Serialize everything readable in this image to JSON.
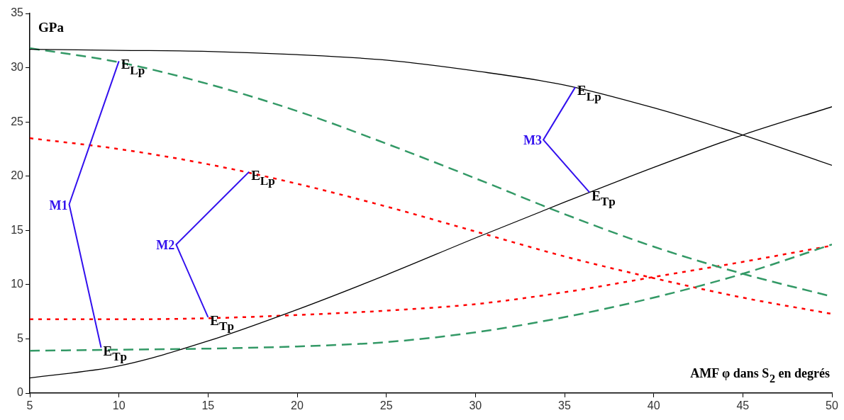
{
  "chart_data": {
    "type": "line",
    "ylabel": "GPa",
    "xlabel": "AMF φ dans S$_{2}$ en degrés",
    "x": [
      5,
      10,
      15,
      20,
      25,
      30,
      35,
      40,
      45,
      50
    ],
    "series": [
      {
        "color": "#000000",
        "line_style": "solid",
        "values": [
          31.7,
          31.6,
          31.5,
          31.2,
          30.7,
          29.7,
          28.4,
          26.3,
          23.8,
          21.0
        ]
      },
      {
        "color": "#000000",
        "line_style": "solid",
        "values": [
          1.4,
          2.5,
          4.8,
          7.7,
          10.9,
          14.3,
          17.6,
          20.8,
          23.8,
          26.4
        ]
      },
      {
        "color": "#339966",
        "line_style": "dashed",
        "values": [
          31.8,
          30.5,
          28.5,
          26.0,
          23.0,
          19.8,
          16.5,
          13.5,
          11.0,
          8.9
        ]
      },
      {
        "color": "#339966",
        "line_style": "dashed",
        "values": [
          3.9,
          4.0,
          4.1,
          4.3,
          4.7,
          5.6,
          7.0,
          8.8,
          11.0,
          13.7
        ]
      },
      {
        "color": "#ff0000",
        "line_style": "dotted",
        "values": [
          23.5,
          22.5,
          21.1,
          19.3,
          17.2,
          14.9,
          12.6,
          10.6,
          8.8,
          7.3
        ]
      },
      {
        "color": "#ff0000",
        "line_style": "dotted",
        "values": [
          6.8,
          6.8,
          6.9,
          7.2,
          7.6,
          8.2,
          9.3,
          10.7,
          12.1,
          13.6
        ]
      }
    ],
    "annotations": [
      "M1",
      {
        "text": "E$_{Lp}$",
        "x": 10,
        "y": 30.6
      },
      {
        "text": "E$_{Tp}$",
        "x": 9,
        "y": 4.2
      },
      "M2",
      {
        "text": "E$_{Lp}$",
        "x": 17.3,
        "y": 20.4
      },
      {
        "text": "E$_{Tp}$",
        "x": 15,
        "y": 7
      },
      "M3",
      {
        "text": "E$_{Lp}$",
        "x": 35.6,
        "y": 28.2
      },
      {
        "text": "E$_{Tp}$",
        "x": 36.4,
        "y": 18.5
      }
    ],
    "xlim": [
      5,
      50
    ],
    "xticks": [
      5,
      10,
      15,
      20,
      25,
      30,
      35,
      40,
      45,
      50
    ],
    "ylim": [
      0,
      35
    ],
    "yticks": [
      0,
      5,
      10,
      15,
      20,
      25,
      30,
      35
    ],
    "grid": false,
    "legend": false,
    "marker": "none"
  }
}
